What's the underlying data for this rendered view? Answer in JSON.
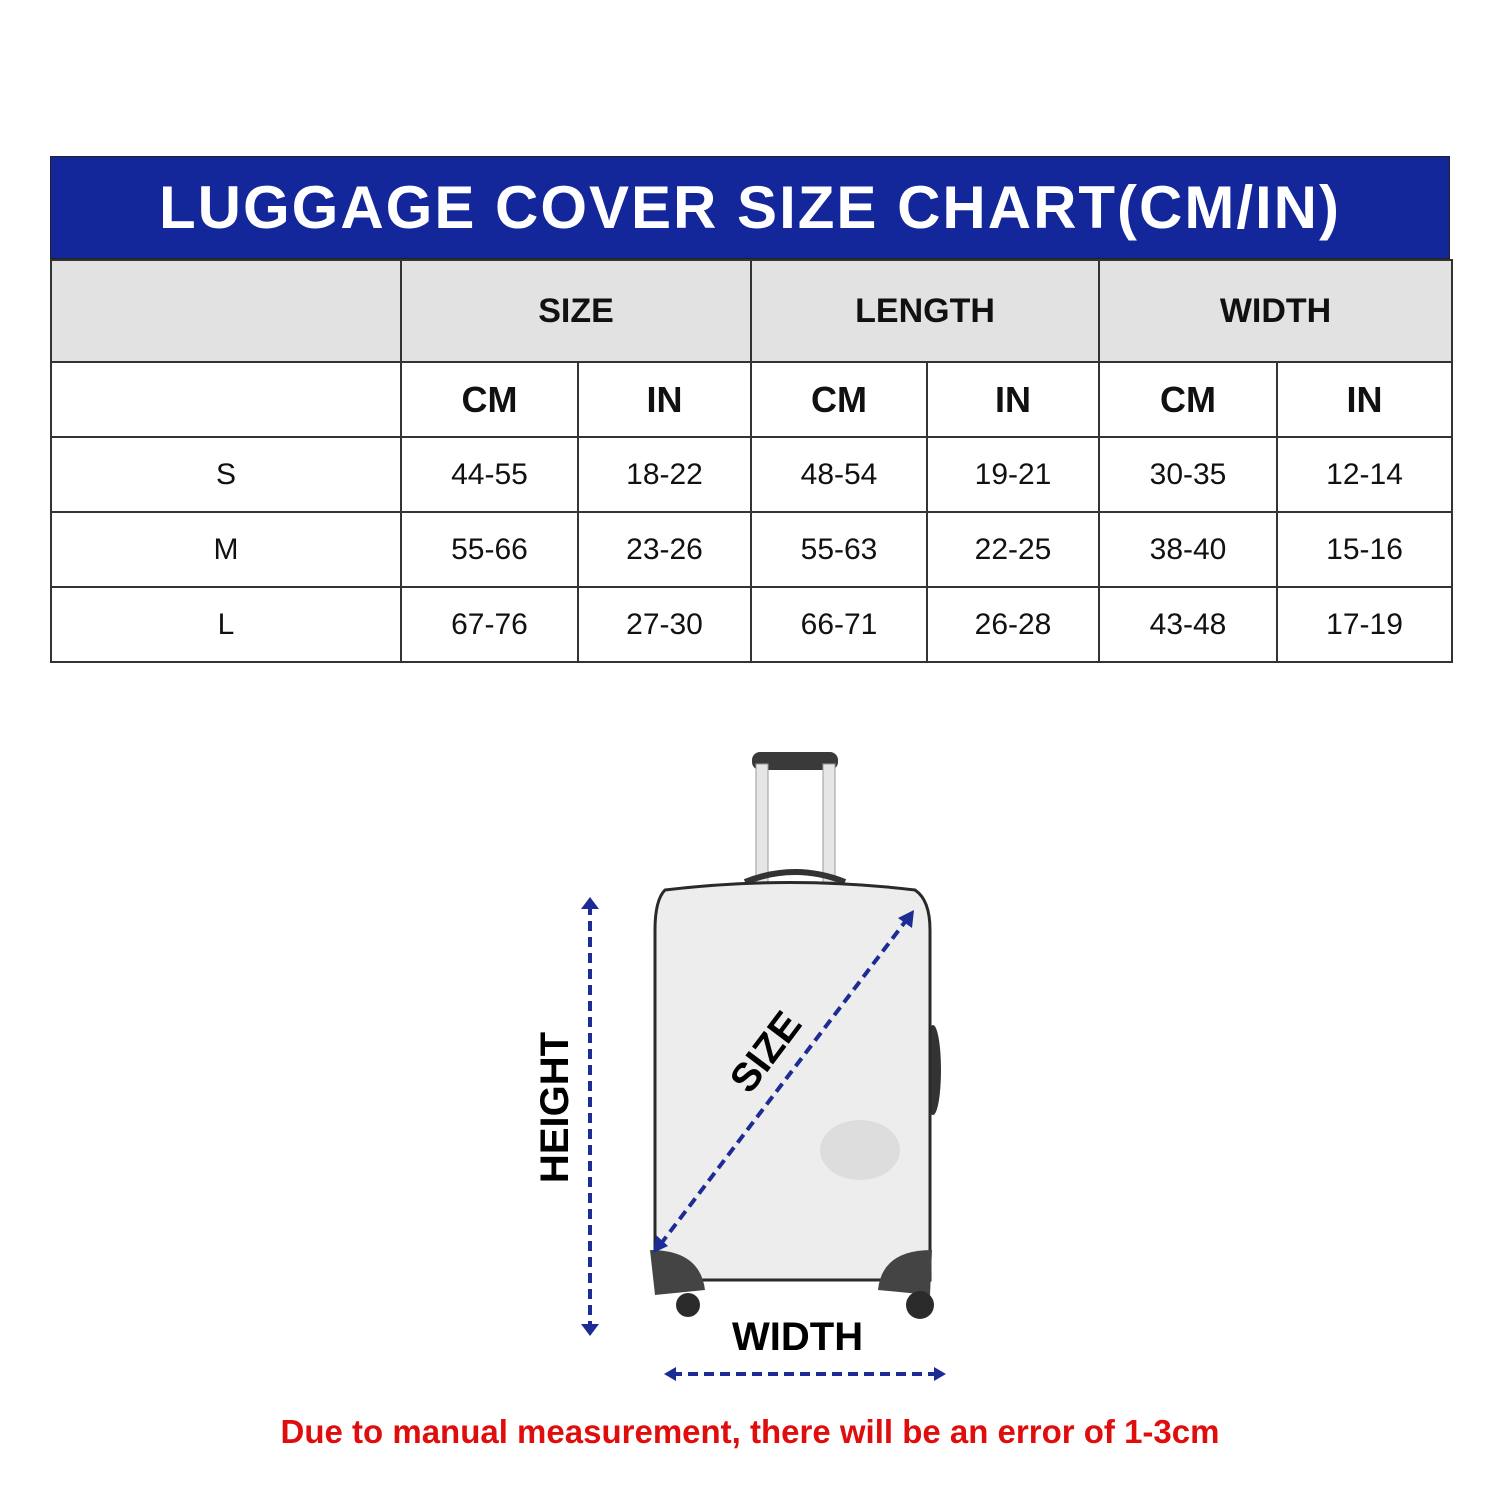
{
  "title": "LUGGAGE COVER SIZE CHART(CM/IN)",
  "colors": {
    "title_bg": "#13279a",
    "header_bg": "#e2e2e2",
    "arrow": "#1d2b94",
    "note": "#e00d0d"
  },
  "table": {
    "groups": [
      "",
      "SIZE",
      "LENGTH",
      "WIDTH"
    ],
    "units": [
      "",
      "CM",
      "IN",
      "CM",
      "IN",
      "CM",
      "IN"
    ],
    "rows": [
      [
        "S",
        "44-55",
        "18-22",
        "48-54",
        "19-21",
        "30-35",
        "12-14"
      ],
      [
        "M",
        "55-66",
        "23-26",
        "55-63",
        "22-25",
        "38-40",
        "15-16"
      ],
      [
        "L",
        "67-76",
        "27-30",
        "66-71",
        "26-28",
        "43-48",
        "17-19"
      ]
    ]
  },
  "diagram": {
    "height_label": "HEIGHT",
    "size_label": "SIZE",
    "width_label": "WIDTH"
  },
  "note": "Due to manual measurement, there will be an error of 1-3cm"
}
